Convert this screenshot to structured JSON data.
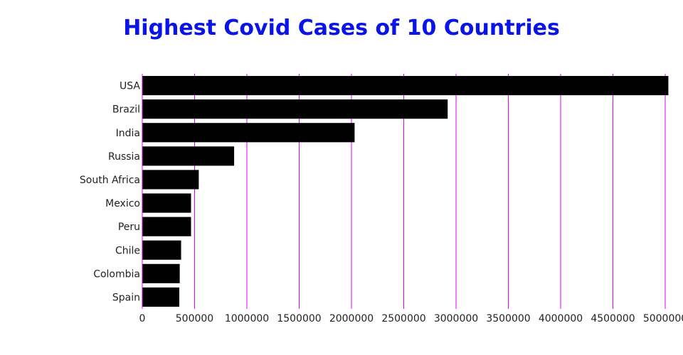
{
  "colors": {
    "title": "#0a14e6",
    "bars": "#000000",
    "grid": "#e000ff",
    "text": "#222222"
  },
  "chart_data": {
    "type": "bar",
    "orientation": "horizontal",
    "title": "Highest Covid Cases of 10 Countries",
    "xlabel": "",
    "ylabel": "",
    "categories": [
      "USA",
      "Brazil",
      "India",
      "Russia",
      "South Africa",
      "Mexico",
      "Peru",
      "Chile",
      "Colombia",
      "Spain"
    ],
    "values": [
      5030000,
      2920000,
      2030000,
      878000,
      540000,
      466000,
      466000,
      371000,
      358000,
      354000
    ],
    "xlim": [
      0,
      5000000
    ],
    "xticks": [
      "0",
      "500000",
      "1000000",
      "1500000",
      "2000000",
      "2500000",
      "3000000",
      "3500000",
      "4000000",
      "4500000",
      "5000000"
    ],
    "grid": "vertical"
  }
}
